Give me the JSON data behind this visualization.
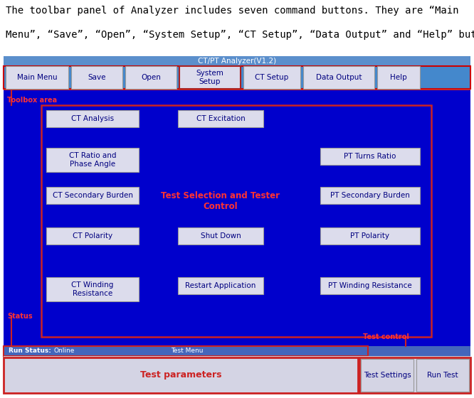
{
  "app_title": "CT/PT Analyzer(V1.2)",
  "toolbar_buttons": [
    "Main Menu",
    "Save",
    "Open",
    "System\nSetup",
    "CT Setup",
    "Data Output",
    "Help"
  ],
  "toolbox_label": "Toolbox area",
  "status_label": "Status",
  "test_control_label": "Test control",
  "center_label": "Test Selection and Tester\nControl",
  "status_bar_text": [
    "Run Status:",
    "Online",
    "Test Menu"
  ],
  "bottom_buttons": [
    "Test parameters",
    "Test Settings",
    "Run Test"
  ],
  "buttons_data": [
    [
      0,
      0,
      "CT Analysis"
    ],
    [
      0,
      1,
      "CT Excitation"
    ],
    [
      1,
      0,
      "CT Ratio and\nPhase Angle"
    ],
    [
      1,
      2,
      "PT Turns Ratio"
    ],
    [
      2,
      0,
      "CT Secondary Burden"
    ],
    [
      2,
      2,
      "PT Secondary Burden"
    ],
    [
      3,
      0,
      "CT Polarity"
    ],
    [
      3,
      1,
      "Shut Down"
    ],
    [
      3,
      2,
      "PT Polarity"
    ],
    [
      4,
      0,
      "CT Winding\nResistance"
    ],
    [
      4,
      1,
      "Restart Application"
    ],
    [
      4,
      2,
      "PT Winding Resistance"
    ]
  ],
  "top_text_line1": "The toolbar panel of Analyzer includes seven command buttons. They are “Main",
  "top_text_line2": "Menu”, “Save”, “Open”, “System Setup”, “CT Setup”, “Data Output” and “Help” buttons."
}
